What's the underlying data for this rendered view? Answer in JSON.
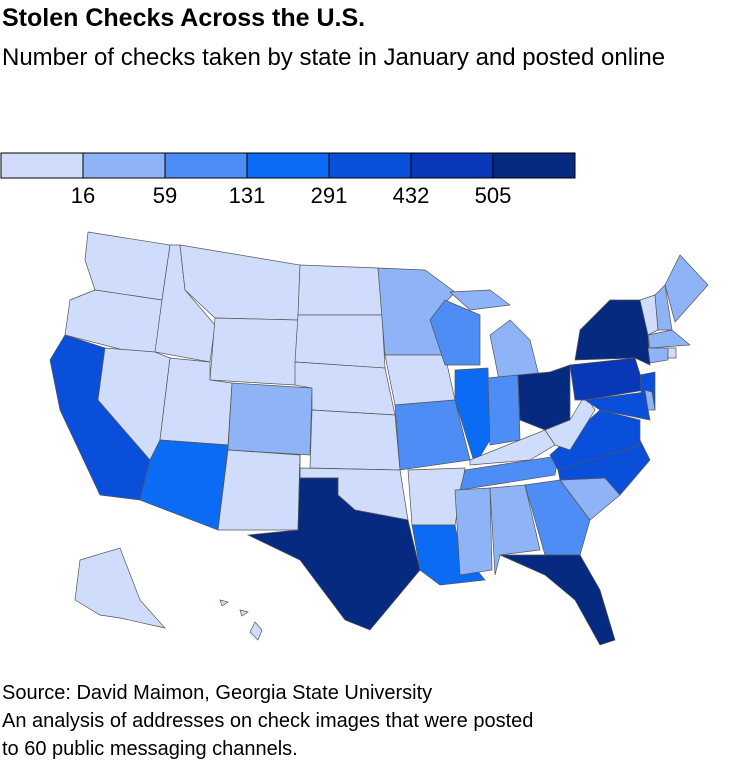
{
  "chart_data": {
    "type": "choropleth",
    "title": "Stolen Checks Across the U.S.",
    "subtitle": "Number of checks taken by state in January and posted online",
    "source": "Source: David Maimon, Georgia State University",
    "note": "An analysis of addresses on check images that were posted to 60 public messaging channels.",
    "legend": {
      "breaks": [
        16,
        59,
        131,
        291,
        432,
        505
      ],
      "colors": [
        "#cfdcfc",
        "#8fb3f7",
        "#4d8df5",
        "#0c6bf5",
        "#0a4fd9",
        "#0838b8",
        "#062a80"
      ]
    },
    "values": [
      0,
      0,
      4,
      0,
      0,
      0,
      0,
      0,
      3,
      1,
      0,
      0,
      0,
      0,
      0,
      0,
      6,
      1,
      0,
      2,
      0,
      3,
      2,
      3,
      1,
      2,
      6,
      0,
      2,
      1,
      1,
      2,
      6,
      1,
      4,
      4,
      0,
      5,
      6,
      4,
      4,
      1,
      0,
      1,
      1,
      1,
      1,
      0,
      0,
      0
    ]
  }
}
